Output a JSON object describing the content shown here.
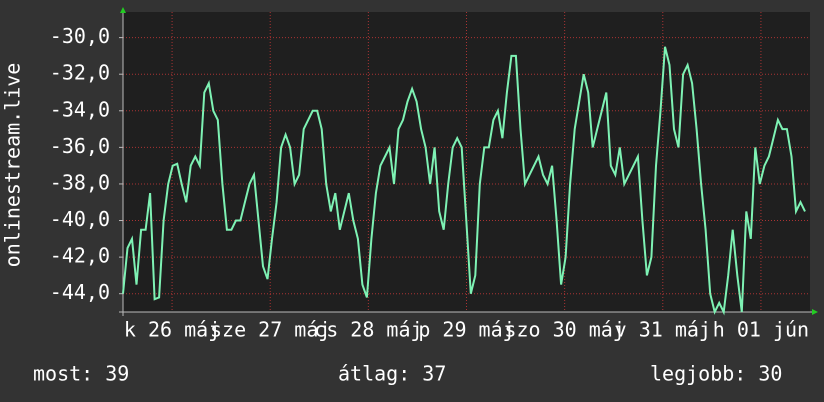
{
  "chart_data": {
    "type": "line",
    "ylabel": "onlinestream.live",
    "color": "#7ef2b4",
    "ylim": [
      -45,
      -28.6
    ],
    "yticks": [
      {
        "value": -30,
        "label": "-30,0"
      },
      {
        "value": -32,
        "label": "-32,0"
      },
      {
        "value": -34,
        "label": "-34,0"
      },
      {
        "value": -36,
        "label": "-36,0"
      },
      {
        "value": -38,
        "label": "-38,0"
      },
      {
        "value": -40,
        "label": "-40,0"
      },
      {
        "value": -42,
        "label": "-42,0"
      },
      {
        "value": -44,
        "label": "-44,0"
      }
    ],
    "xlim": [
      0,
      7
    ],
    "xticks": [
      {
        "value": 0.5,
        "label": "k 26 máj"
      },
      {
        "value": 1.5,
        "label": "sze 27 máj"
      },
      {
        "value": 2.5,
        "label": "cs 28 máj"
      },
      {
        "value": 3.5,
        "label": "p 29 máj"
      },
      {
        "value": 4.5,
        "label": "szo 30 máj"
      },
      {
        "value": 5.5,
        "label": "v 31 máj"
      },
      {
        "value": 6.5,
        "label": "h 01 jún"
      }
    ],
    "grid": true,
    "values": [
      -44,
      -41.5,
      -41,
      -43.5,
      -40.5,
      -40.5,
      -38.5,
      -44.3,
      -44.2,
      -40,
      -38,
      -37,
      -36.9,
      -38,
      -39,
      -37,
      -36.5,
      -37,
      -33,
      -32.5,
      -34,
      -34.5,
      -38,
      -40.5,
      -40.5,
      -40,
      -40,
      -39,
      -38,
      -37.5,
      -40,
      -42.5,
      -43.2,
      -41,
      -39,
      -36,
      -35.3,
      -36,
      -38,
      -37.5,
      -35,
      -34.5,
      -34,
      -34,
      -35,
      -38,
      -39.5,
      -38.5,
      -40.5,
      -39.5,
      -38.5,
      -40,
      -41,
      -43.5,
      -44.2,
      -41,
      -38.5,
      -37,
      -36.5,
      -36,
      -38,
      -35,
      -34.5,
      -33.5,
      -32.8,
      -33.5,
      -35,
      -36,
      -38,
      -36,
      -39.5,
      -40.5,
      -38,
      -36,
      -35.5,
      -36,
      -40,
      -44,
      -43,
      -38,
      -36,
      -36,
      -34.5,
      -34,
      -35.5,
      -33,
      -31,
      -31,
      -35,
      -38,
      -37.5,
      -37,
      -36.5,
      -37.5,
      -38,
      -37,
      -40,
      -43.5,
      -42,
      -38,
      -35,
      -33.5,
      -32,
      -33,
      -36,
      -35,
      -34,
      -33,
      -37,
      -37.5,
      -36,
      -38,
      -37.5,
      -37,
      -36.5,
      -40,
      -43,
      -42,
      -37,
      -34,
      -30.5,
      -31.5,
      -35,
      -36,
      -32,
      -31.5,
      -32.5,
      -35,
      -38,
      -40.5,
      -44,
      -45,
      -44.5,
      -45,
      -43,
      -40.5,
      -43,
      -45,
      -39.5,
      -41,
      -36,
      -38,
      -37,
      -36.5,
      -35.5,
      -34.5,
      -35,
      -35,
      -36.5,
      -39.5,
      -39,
      -39.5
    ]
  },
  "stats": [
    "most: 39",
    "átlag: 37",
    "legjobb: 30"
  ]
}
